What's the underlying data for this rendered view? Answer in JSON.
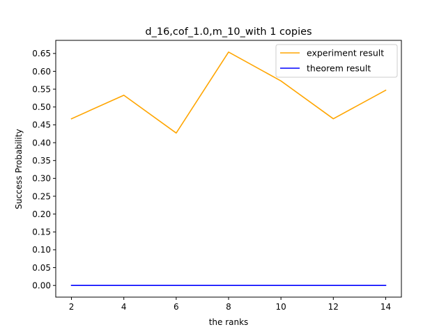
{
  "chart_data": {
    "type": "line",
    "title": "d_16,cof_1.0,m_10_with 1 copies",
    "xlabel": "the ranks",
    "ylabel": "Success Probability",
    "x": [
      2,
      4,
      6,
      8,
      10,
      12,
      14
    ],
    "xlim": [
      1.4,
      14.6
    ],
    "ylim": [
      -0.0327,
      0.6867
    ],
    "xticks": [
      2,
      4,
      6,
      8,
      10,
      12,
      14
    ],
    "yticks": [
      0.0,
      0.05,
      0.1,
      0.15,
      0.2,
      0.25,
      0.3,
      0.35,
      0.4,
      0.45,
      0.5,
      0.55,
      0.6,
      0.65
    ],
    "ytick_format_decimals": 2,
    "grid": false,
    "legend_position": "top-right",
    "series": [
      {
        "name": "experiment result",
        "color": "#ffa500",
        "values": [
          0.467,
          0.533,
          0.427,
          0.654,
          0.573,
          0.467,
          0.547
        ]
      },
      {
        "name": "theorem result",
        "color": "#0000ff",
        "values": [
          0.0,
          0.0,
          0.0,
          0.0,
          0.0,
          0.0,
          0.0
        ]
      }
    ]
  }
}
